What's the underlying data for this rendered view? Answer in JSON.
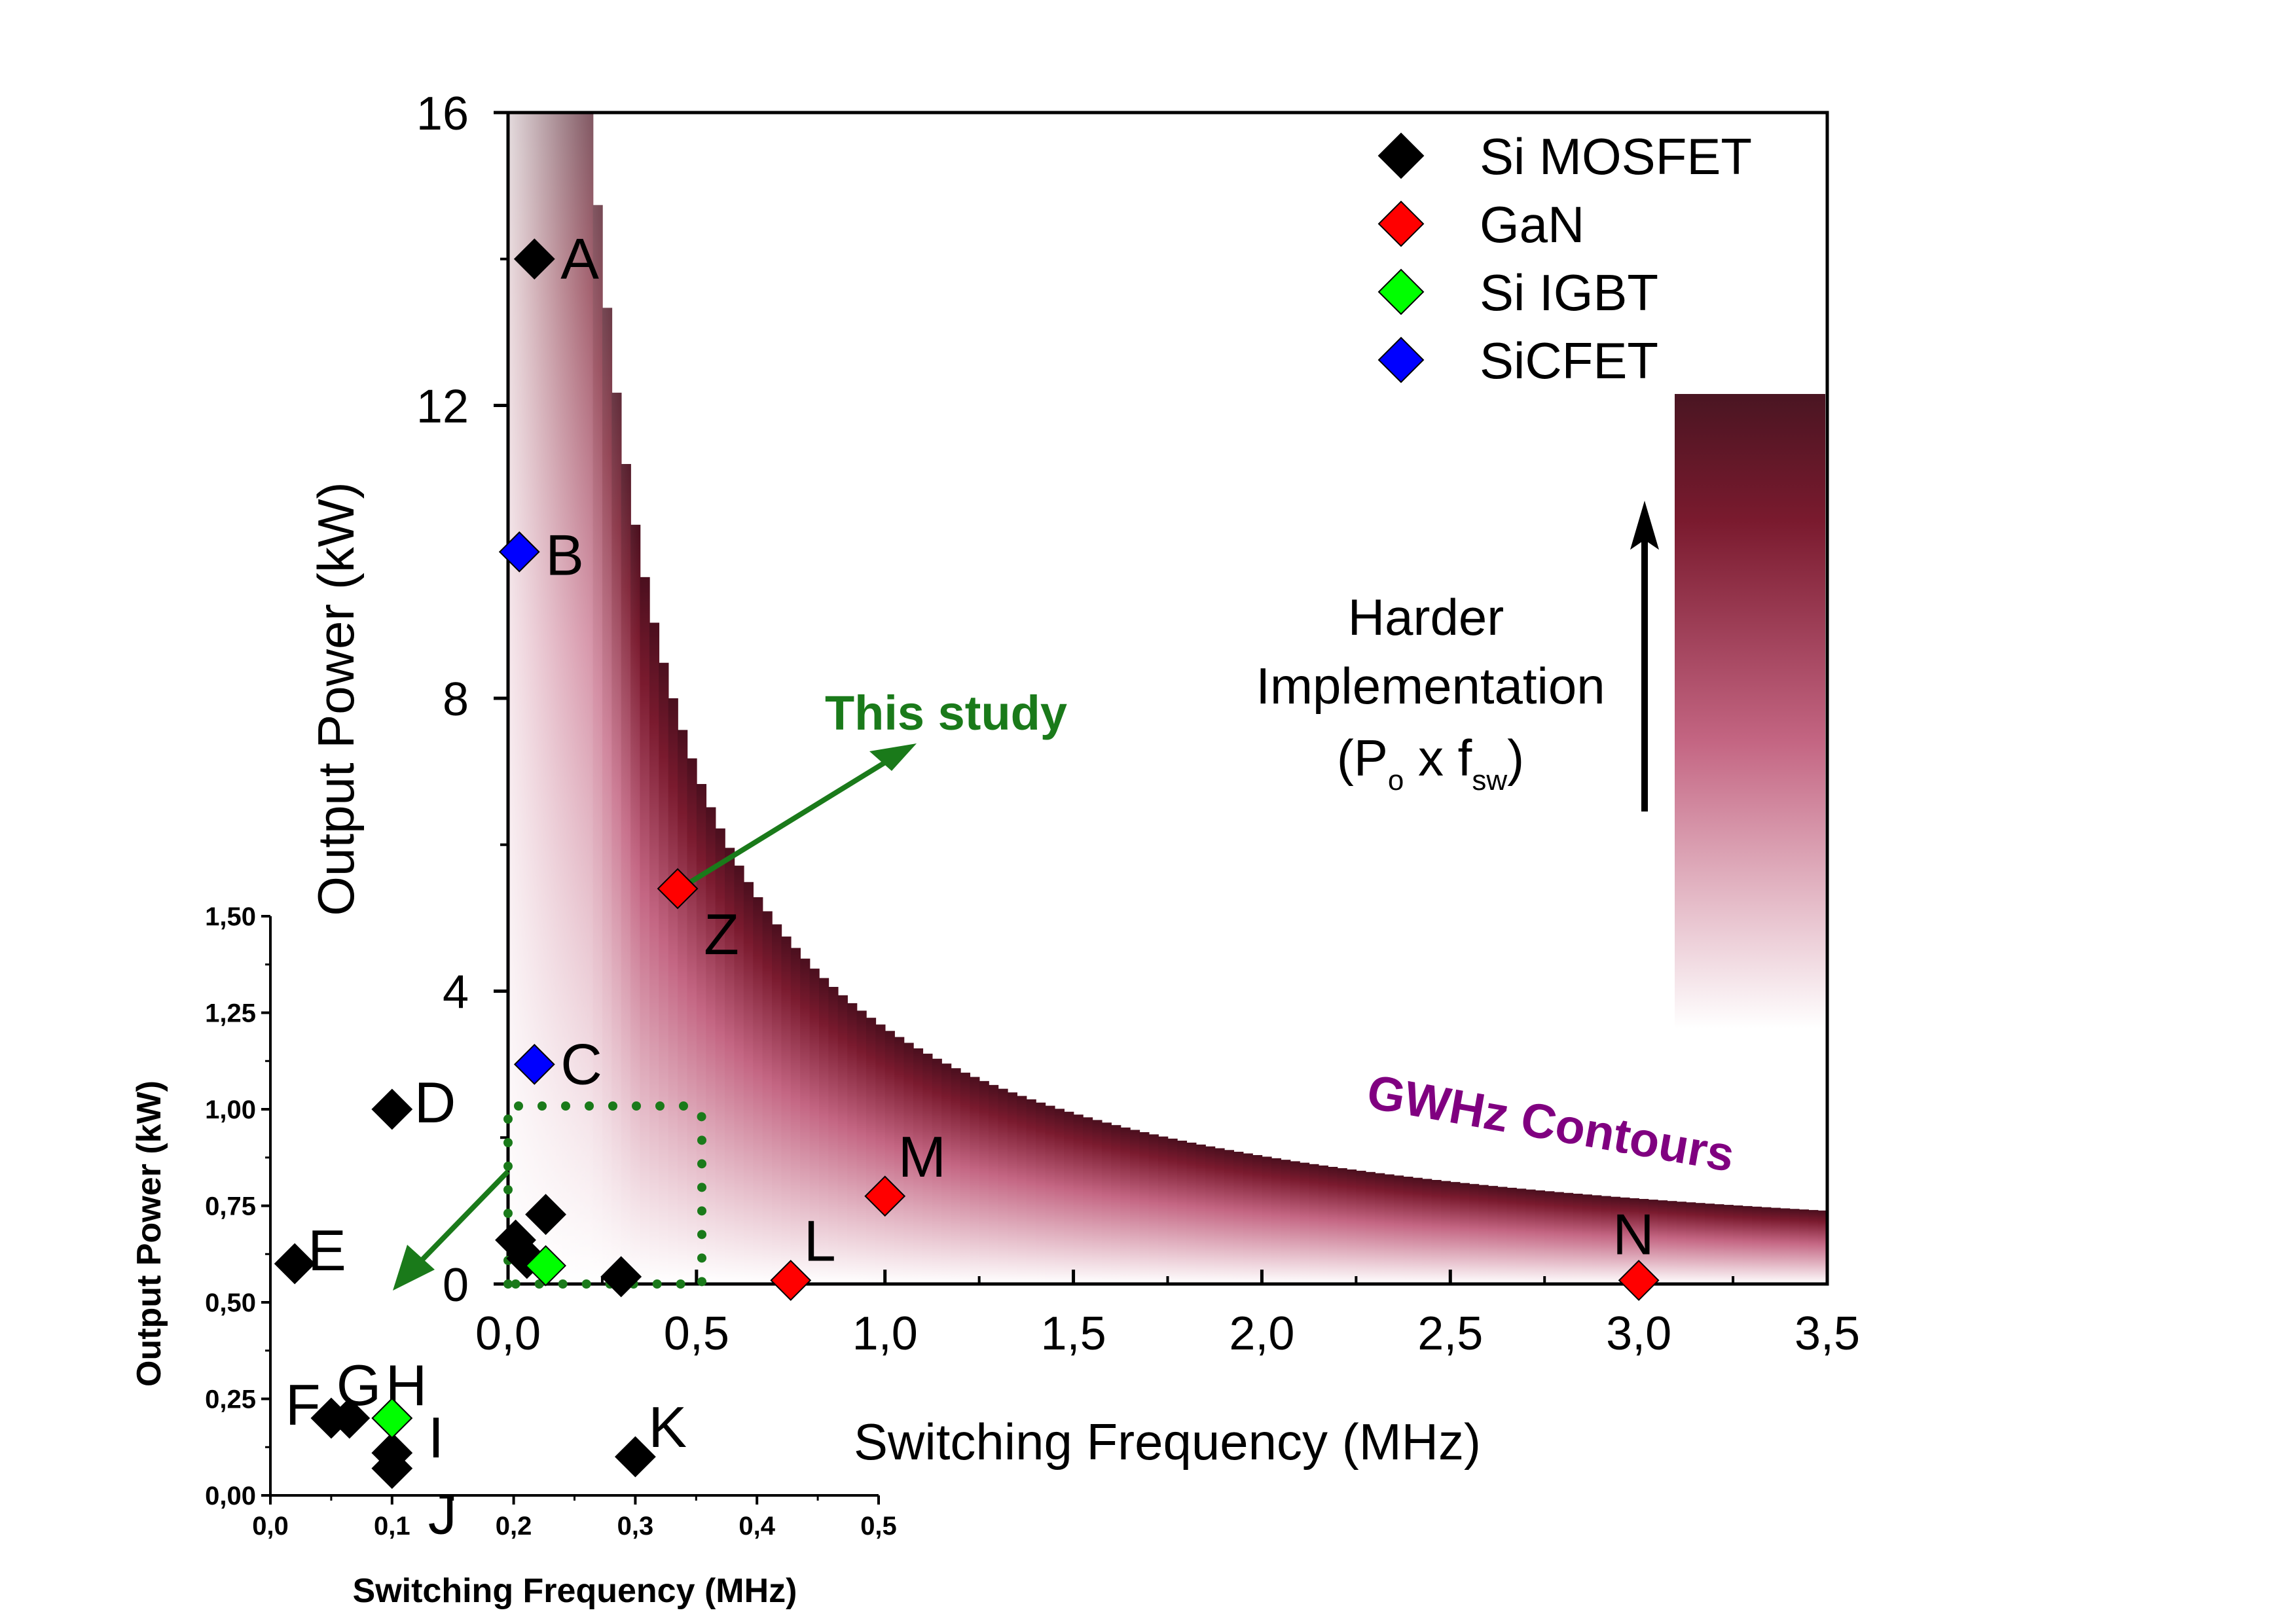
{
  "chart_data": [
    {
      "type": "scatter",
      "title": "",
      "xlabel": "Switching Frequency (MHz)",
      "ylabel": "Output Power (kW)",
      "xlim": [
        0,
        3.5
      ],
      "ylim": [
        0,
        16
      ],
      "x_ticks": [
        "0,0",
        "0,5",
        "1,0",
        "1,5",
        "2,0",
        "2,5",
        "3,0",
        "3,5"
      ],
      "y_ticks": [
        "0",
        "4",
        "8",
        "12",
        "16"
      ],
      "legend": {
        "placement": "top-right",
        "items": [
          {
            "name": "Si MOSFET",
            "color": "#000000"
          },
          {
            "name": "GaN",
            "color": "#ff0000"
          },
          {
            "name": "Si IGBT",
            "color": "#00ff00"
          },
          {
            "name": "SiCFET",
            "color": "#0000ff"
          }
        ]
      },
      "series": [
        {
          "name": "Si MOSFET",
          "color": "#000000",
          "points": [
            {
              "label": "A",
              "x": 0.07,
              "y": 14
            },
            {
              "label": "",
              "x": 0.02,
              "y": 0.6
            },
            {
              "label": "",
              "x": 0.05,
              "y": 0.35
            },
            {
              "label": "",
              "x": 0.1,
              "y": 0.95
            },
            {
              "label": "",
              "x": 0.3,
              "y": 0.1
            }
          ]
        },
        {
          "name": "GaN",
          "color": "#ff0000",
          "points": [
            {
              "label": "Z",
              "x": 0.45,
              "y": 5.4
            },
            {
              "label": "M",
              "x": 1.0,
              "y": 1.2
            },
            {
              "label": "L",
              "x": 0.75,
              "y": 0.05
            },
            {
              "label": "N",
              "x": 3.0,
              "y": 0.05
            }
          ]
        },
        {
          "name": "Si IGBT",
          "color": "#00ff00",
          "points": [
            {
              "label": "",
              "x": 0.1,
              "y": 0.25
            }
          ]
        },
        {
          "name": "SiCFET",
          "color": "#0000ff",
          "points": [
            {
              "label": "B",
              "x": 0.03,
              "y": 10
            },
            {
              "label": "C",
              "x": 0.07,
              "y": 3.0
            }
          ]
        }
      ],
      "annotations": {
        "gradient_label": "GWHz Contours",
        "study_label": "This study",
        "harder_line1": "Harder",
        "harder_line2": "Implementation",
        "harder_line3_open": "(P",
        "harder_line3_sub1": "o",
        "harder_line3_mid": " x f",
        "harder_line3_sub2": "sw",
        "harder_line3_close": ")"
      },
      "colors": {
        "contour_dark": "#4a0f1e",
        "contour_mid": "#7a1a2e",
        "study": "#1a7a1a",
        "contour_label": "#800080"
      }
    },
    {
      "type": "scatter",
      "title": "",
      "xlabel": "Switching Frequency (MHz)",
      "ylabel": "Output Power (kW)",
      "xlim": [
        0,
        0.5
      ],
      "ylim": [
        0,
        1.5
      ],
      "x_ticks": [
        "0,0",
        "0,1",
        "0,2",
        "0,3",
        "0,4",
        "0,5"
      ],
      "y_ticks": [
        "0,00",
        "0,25",
        "0,50",
        "0,75",
        "1,00",
        "1,25",
        "1,50"
      ],
      "series": [
        {
          "name": "Si MOSFET",
          "color": "#000000",
          "points": [
            {
              "label": "D",
              "x": 0.1,
              "y": 1.0
            },
            {
              "label": "E",
              "x": 0.02,
              "y": 0.6
            },
            {
              "label": "F",
              "x": 0.05,
              "y": 0.2
            },
            {
              "label": "G",
              "x": 0.065,
              "y": 0.2
            },
            {
              "label": "",
              "x": 0.1,
              "y": 0.11
            },
            {
              "label": "J",
              "x": 0.1,
              "y": 0.07
            },
            {
              "label": "K",
              "x": 0.3,
              "y": 0.1
            }
          ]
        },
        {
          "name": "Si IGBT",
          "color": "#00ff00",
          "points": [
            {
              "label": "H",
              "x": 0.1,
              "y": 0.2
            },
            {
              "label": "I",
              "x": 0.1,
              "y": 0.2
            }
          ]
        }
      ]
    }
  ]
}
